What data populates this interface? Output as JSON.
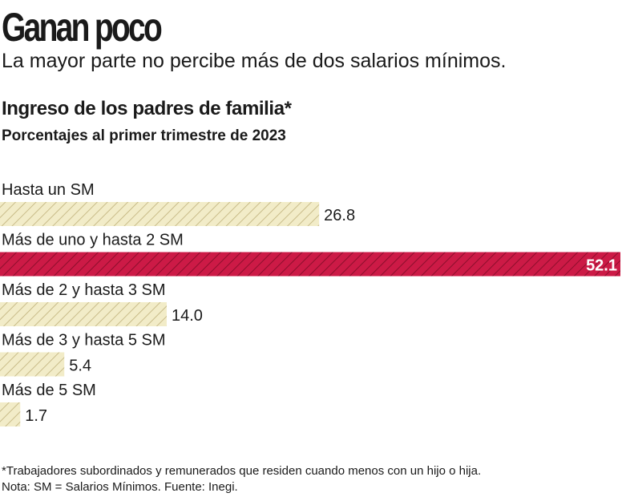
{
  "header": {
    "title": "Ganan poco",
    "subtitle": "La mayor parte no percibe más de dos  salarios mínimos."
  },
  "chart_data": {
    "type": "bar",
    "orientation": "horizontal",
    "title": "Ingreso de los padres de familia*",
    "subtitle": "Porcentajes al primer trimestre de 2023",
    "categories": [
      "Hasta un SM",
      "Más de uno y hasta 2 SM",
      "Más de 2 y hasta 3 SM",
      "Más de 3 y hasta 5 SM",
      "Más de 5 SM"
    ],
    "values": [
      26.8,
      52.1,
      14.0,
      5.4,
      1.7
    ],
    "value_labels": [
      "26.8",
      "52.1",
      "14.0",
      "5.4",
      "1.7"
    ],
    "highlight_index": 1,
    "xlim": [
      0,
      52.1
    ],
    "grid": false,
    "colors": {
      "default_fill": "#f2ecc8",
      "default_hatch": "#bfb07a",
      "highlight_fill": "#cc1a46",
      "highlight_hatch": "#8c0f2c"
    }
  },
  "footnotes": {
    "note": "*Trabajadores subordinados y remunerados que residen cuando menos con un hijo o hija.",
    "source": "Nota: SM = Salarios Mínimos. Fuente: Inegi."
  }
}
